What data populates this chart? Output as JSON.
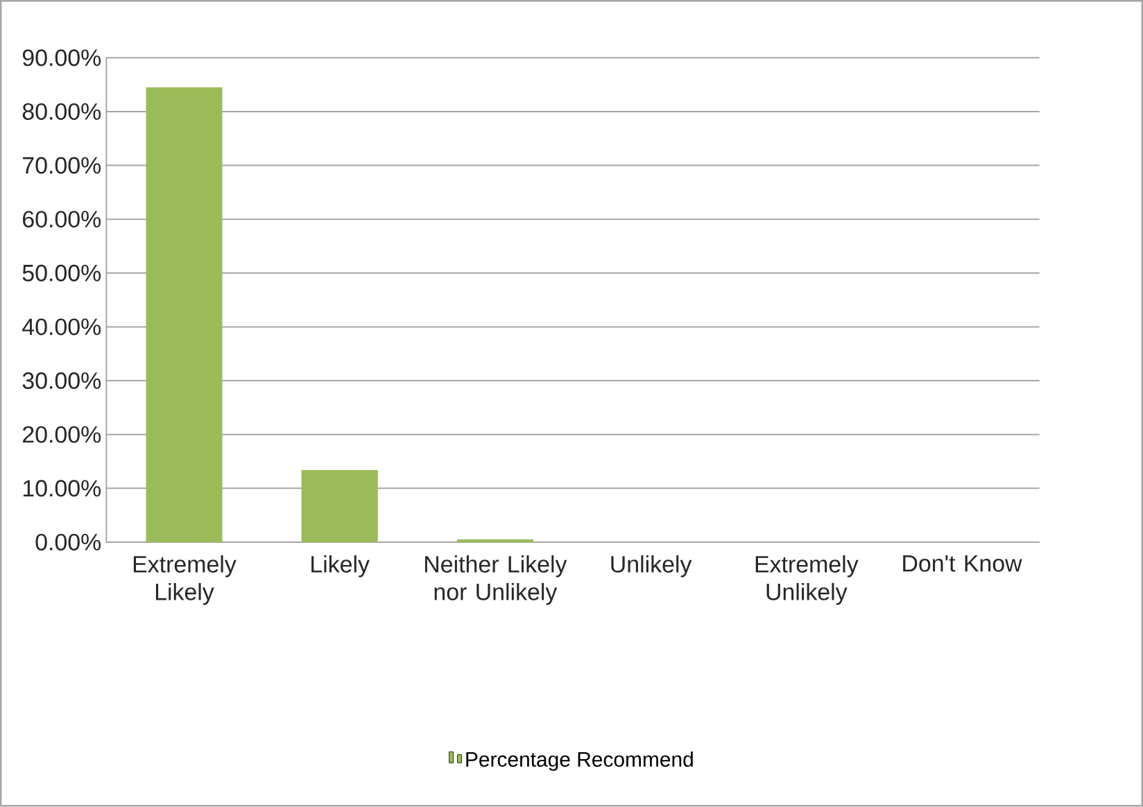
{
  "chart_data": {
    "type": "bar",
    "categories": [
      "Extremely Likely",
      "Likely",
      "Neither Likely nor Unlikely",
      "Unlikely",
      "Extremely Unlikely",
      "Don't Know"
    ],
    "series": [
      {
        "name": "Percentage Recommend",
        "color": "#9bbb59",
        "values": [
          84.5,
          13.4,
          0.5,
          0,
          0,
          0
        ]
      }
    ],
    "ylim": [
      0,
      90
    ],
    "yticks": [
      {
        "value": 0,
        "label": "0.00%"
      },
      {
        "value": 10,
        "label": "10.00%"
      },
      {
        "value": 20,
        "label": "20.00%"
      },
      {
        "value": 30,
        "label": "30.00%"
      },
      {
        "value": 40,
        "label": "40.00%"
      },
      {
        "value": 50,
        "label": "50.00%"
      },
      {
        "value": 60,
        "label": "60.00%"
      },
      {
        "value": 70,
        "label": "70.00%"
      },
      {
        "value": 80,
        "label": "80.00%"
      },
      {
        "value": 90,
        "label": "90.00%"
      }
    ],
    "grid": "y",
    "legend": "bottom"
  }
}
